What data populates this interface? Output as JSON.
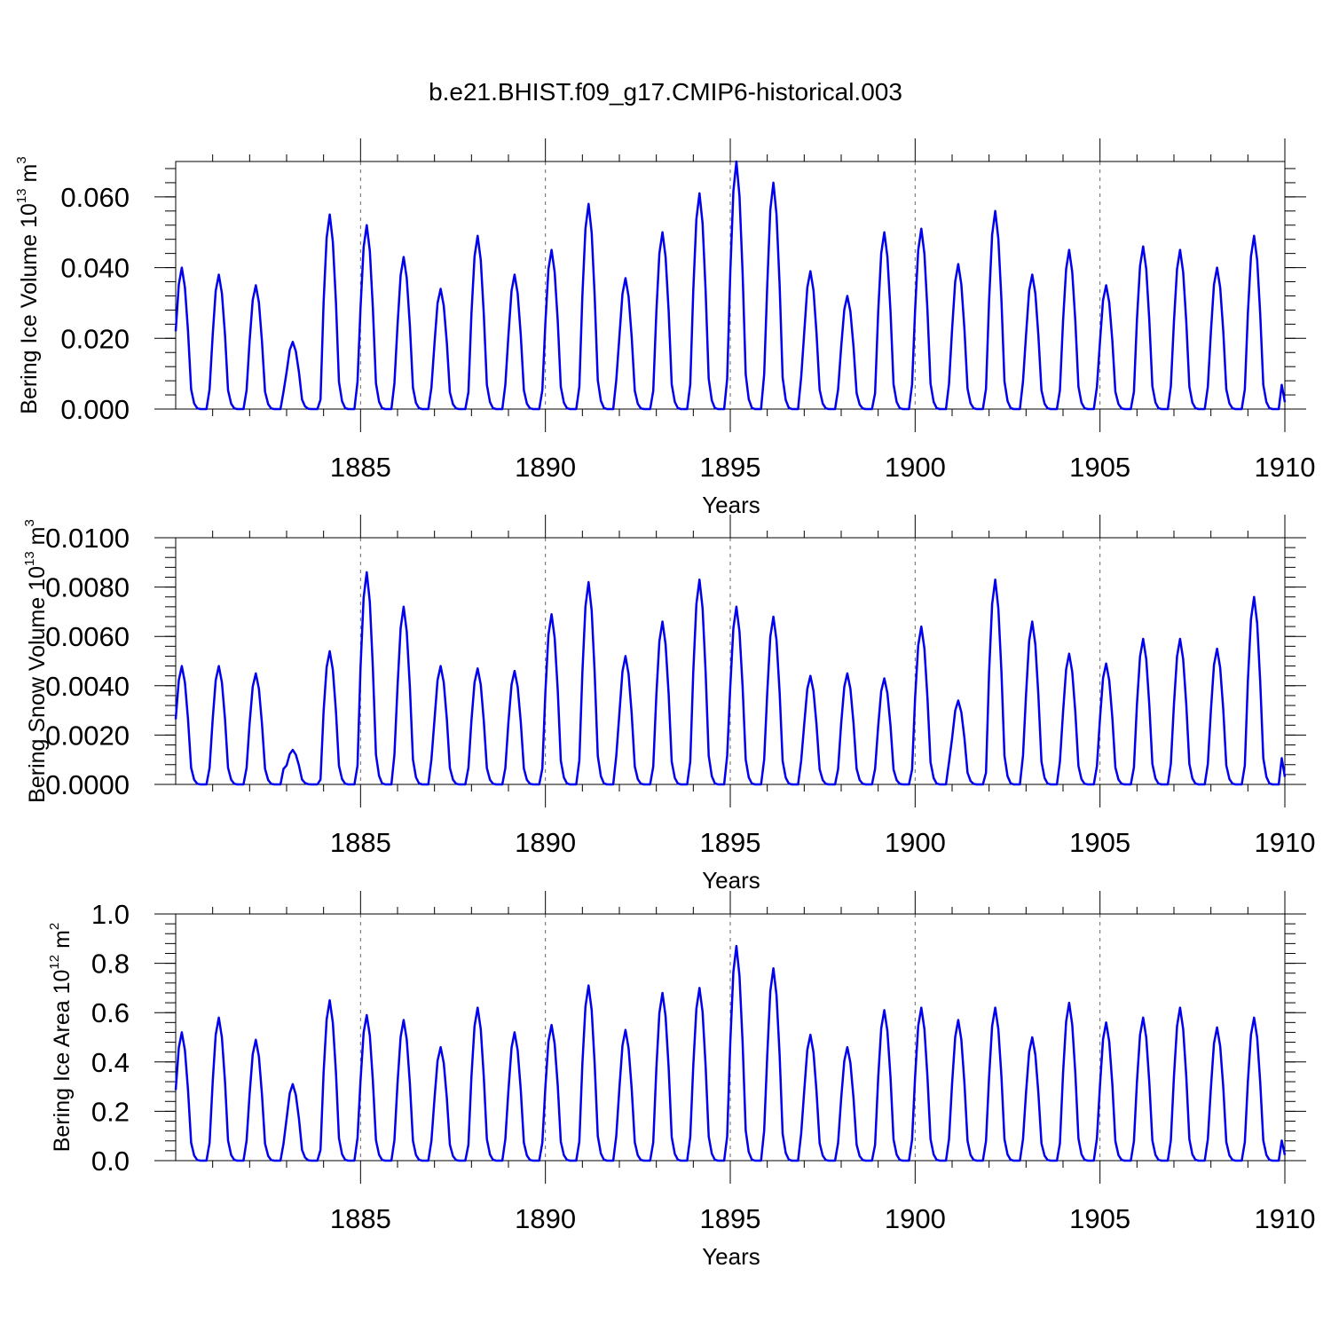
{
  "title": "b.e21.BHIST.f09_g17.CMIP6-historical.003",
  "colors": {
    "series": "#0000ee",
    "axis": "#000000",
    "grid": "#666666"
  },
  "chart_data": [
    {
      "type": "line",
      "title": "b.e21.BHIST.f09_g17.CMIP6-historical.003",
      "xlabel": "Years",
      "ylabel_main": "Bering Ice Volume 10",
      "ylabel_exp": "13",
      "ylabel_unit": " m",
      "ylabel_unit_exp": "3",
      "xlim": [
        1880,
        1910
      ],
      "ylim": [
        0,
        0.07
      ],
      "xticks": [
        1885,
        1890,
        1895,
        1900,
        1905,
        1910
      ],
      "xtick_labels": [
        "1885",
        "1890",
        "1895",
        "1900",
        "1905",
        "1910"
      ],
      "yticks": [
        0,
        0.02,
        0.04,
        0.06
      ],
      "ytick_labels": [
        "0.000",
        "0.020",
        "0.040",
        "0.060"
      ],
      "grid": "dashed vertical at major x ticks",
      "series": [
        {
          "name": "Bering Ice Volume",
          "peaks": [
            0.04,
            0.038,
            0.035,
            0.019,
            0.055,
            0.052,
            0.043,
            0.034,
            0.049,
            0.038,
            0.045,
            0.058,
            0.037,
            0.05,
            0.061,
            0.07,
            0.064,
            0.039,
            0.032,
            0.05,
            0.051,
            0.041,
            0.056,
            0.038,
            0.045,
            0.035,
            0.046,
            0.045,
            0.04,
            0.049
          ]
        }
      ]
    },
    {
      "type": "line",
      "xlabel": "Years",
      "ylabel_main": "Bering Snow Volume 10",
      "ylabel_exp": "13",
      "ylabel_unit": " m",
      "ylabel_unit_exp": "3",
      "xlim": [
        1880,
        1910
      ],
      "ylim": [
        0,
        0.01
      ],
      "xticks": [
        1885,
        1890,
        1895,
        1900,
        1905,
        1910
      ],
      "xtick_labels": [
        "1885",
        "1890",
        "1895",
        "1900",
        "1905",
        "1910"
      ],
      "yticks": [
        0,
        0.002,
        0.004,
        0.006,
        0.008,
        0.01
      ],
      "ytick_labels": [
        "0.0000",
        "0.0020",
        "0.0040",
        "0.0060",
        "0.0080",
        "0.0100"
      ],
      "grid": "dashed vertical at major x ticks",
      "series": [
        {
          "name": "Bering Snow Volume",
          "peaks": [
            0.0048,
            0.0048,
            0.0045,
            0.0014,
            0.0054,
            0.0086,
            0.0072,
            0.0048,
            0.0047,
            0.0046,
            0.0069,
            0.0082,
            0.0052,
            0.0066,
            0.0083,
            0.0072,
            0.0068,
            0.0044,
            0.0045,
            0.0043,
            0.0064,
            0.0034,
            0.0083,
            0.0066,
            0.0053,
            0.0049,
            0.0059,
            0.0059,
            0.0055,
            0.0076
          ]
        }
      ]
    },
    {
      "type": "line",
      "xlabel": "Years",
      "ylabel_main": "Bering Ice Area 10",
      "ylabel_exp": "12",
      "ylabel_unit": " m",
      "ylabel_unit_exp": "2",
      "xlim": [
        1880,
        1910
      ],
      "ylim": [
        0,
        1.0
      ],
      "xticks": [
        1885,
        1890,
        1895,
        1900,
        1905,
        1910
      ],
      "xtick_labels": [
        "1885",
        "1890",
        "1895",
        "1900",
        "1905",
        "1910"
      ],
      "yticks": [
        0,
        0.2,
        0.4,
        0.6,
        0.8,
        1.0
      ],
      "ytick_labels": [
        "0.0",
        "0.2",
        "0.4",
        "0.6",
        "0.8",
        "1.0"
      ],
      "grid": "dashed vertical at major x ticks",
      "series": [
        {
          "name": "Bering Ice Area",
          "peaks": [
            0.52,
            0.58,
            0.49,
            0.31,
            0.65,
            0.59,
            0.57,
            0.46,
            0.62,
            0.52,
            0.55,
            0.71,
            0.53,
            0.68,
            0.7,
            0.87,
            0.78,
            0.51,
            0.46,
            0.61,
            0.62,
            0.57,
            0.62,
            0.5,
            0.64,
            0.56,
            0.58,
            0.62,
            0.54,
            0.58
          ]
        }
      ]
    }
  ]
}
